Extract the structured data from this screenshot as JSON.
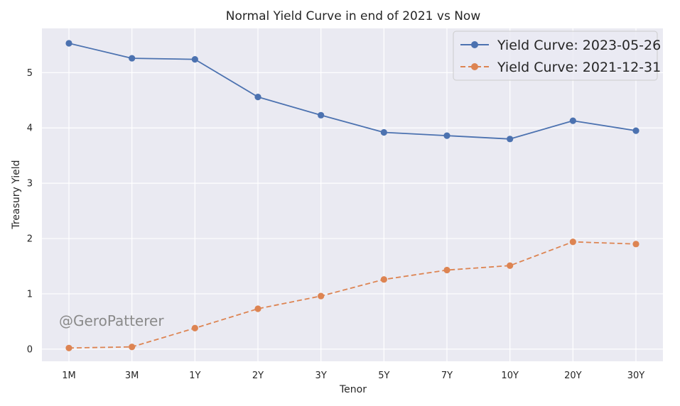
{
  "chart_data": {
    "type": "line",
    "title": "Normal Yield Curve in end of 2021 vs Now",
    "xlabel": "Tenor",
    "ylabel": "Treasury Yield",
    "categories": [
      "1M",
      "3M",
      "1Y",
      "2Y",
      "3Y",
      "5Y",
      "7Y",
      "10Y",
      "20Y",
      "30Y"
    ],
    "yticks": [
      0,
      1,
      2,
      3,
      4,
      5
    ],
    "ylim": [
      -0.22,
      5.8
    ],
    "grid": true,
    "legend_position": "top-right",
    "series": [
      {
        "name": "Yield Curve: 2023-05-26",
        "values": [
          5.53,
          5.26,
          5.24,
          4.56,
          4.23,
          3.92,
          3.86,
          3.8,
          4.13,
          3.95
        ],
        "color": "#4c72b0",
        "line_style": "solid",
        "marker": "circle"
      },
      {
        "name": "Yield Curve: 2021-12-31",
        "values": [
          0.02,
          0.04,
          0.38,
          0.73,
          0.96,
          1.26,
          1.43,
          1.51,
          1.94,
          1.9
        ],
        "color": "#dd8452",
        "line_style": "dashed",
        "marker": "circle"
      }
    ]
  },
  "watermark": "@GeroPatterer",
  "colors": {
    "plot_background": "#eaeaf2",
    "grid": "#ffffff"
  }
}
